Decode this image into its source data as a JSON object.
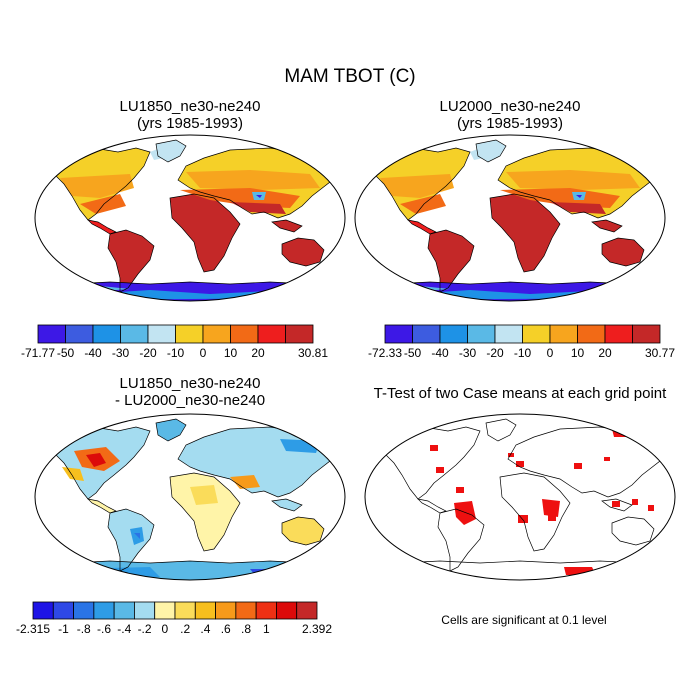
{
  "main_title": "MAM TBOT (C)",
  "panels": [
    {
      "title_lines": [
        "LU1850_ne30-ne240",
        "(yrs 1985-1993)"
      ],
      "fill": "temp",
      "colorbar": {
        "colors": [
          "#3d18e6",
          "#3d5ce0",
          "#1e92e6",
          "#5ab9e6",
          "#c2e4f2",
          "#f5d028",
          "#f7a51e",
          "#f26a16",
          "#ee1e1e",
          "#c42828"
        ],
        "labels": [
          "-71.77",
          "-50",
          "-40",
          "-30",
          "-20",
          "-10",
          "0",
          "10",
          "20",
          "30.81"
        ]
      }
    },
    {
      "title_lines": [
        "LU2000_ne30-ne240",
        "(yrs 1985-1993)"
      ],
      "fill": "temp",
      "colorbar": {
        "colors": [
          "#3d18e6",
          "#3d5ce0",
          "#1e92e6",
          "#5ab9e6",
          "#c2e4f2",
          "#f5d028",
          "#f7a51e",
          "#f26a16",
          "#ee1e1e",
          "#c42828"
        ],
        "labels": [
          "-72.33",
          "-50",
          "-40",
          "-30",
          "-20",
          "-10",
          "0",
          "10",
          "20",
          "30.77"
        ]
      }
    },
    {
      "title_lines": [
        "LU1850_ne30-ne240",
        "- LU2000_ne30-ne240"
      ],
      "fill": "diff",
      "colorbar": {
        "colors": [
          "#1e14e6",
          "#2e48e6",
          "#2a74e6",
          "#2e9ce6",
          "#5ab9e6",
          "#a4dcf0",
          "#fff4a8",
          "#fadc5a",
          "#f7bf1e",
          "#f79a1a",
          "#f26a16",
          "#ee3014",
          "#dc0a0a",
          "#c42828"
        ],
        "labels": [
          "-2.315",
          "-1",
          "-.8",
          "-.6",
          "-.4",
          "-.2",
          "0",
          ".2",
          ".4",
          ".6",
          ".8",
          "1",
          "2.392"
        ]
      }
    },
    {
      "title_lines": [
        "T-Test of two Case means at each grid point"
      ],
      "fill": "ttest",
      "note": "Cells are significant at 0.1 level"
    }
  ]
}
